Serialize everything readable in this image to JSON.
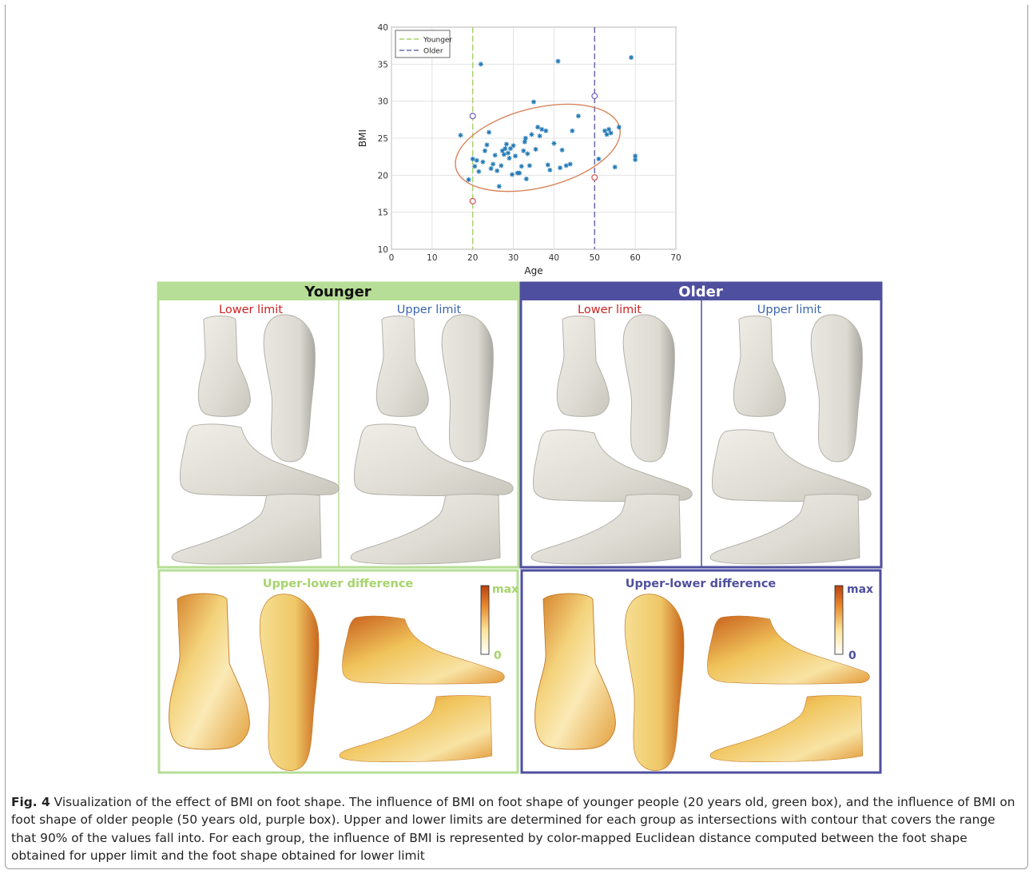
{
  "chart_data": {
    "type": "scatter",
    "xlabel": "Age",
    "ylabel": "BMI",
    "xlim": [
      0,
      70
    ],
    "ylim": [
      10,
      40
    ],
    "xticks": [
      0,
      10,
      20,
      30,
      40,
      50,
      60,
      70
    ],
    "yticks": [
      10,
      15,
      20,
      25,
      30,
      35,
      40
    ],
    "grid": true,
    "legend_position": "top-left",
    "legend": [
      {
        "label": "Younger",
        "color": "#a6d46a"
      },
      {
        "label": "Older",
        "color": "#6a6aa8"
      }
    ],
    "reference_lines": [
      {
        "series": "Younger",
        "x": 20,
        "color": "#a6d46a"
      },
      {
        "series": "Older",
        "x": 50,
        "color": "#6a6aa8"
      }
    ],
    "ellipse": {
      "color": "#d8845a",
      "center": [
        36,
        23.7
      ],
      "x_range": [
        17.5,
        59
      ],
      "y_range": [
        15.4,
        32.7
      ]
    },
    "limit_points": [
      {
        "x": 20,
        "y": 28,
        "color": "#7b68c0"
      },
      {
        "x": 20,
        "y": 16.5,
        "color": "#d65a5a"
      },
      {
        "x": 50,
        "y": 30.7,
        "color": "#7b68c0"
      },
      {
        "x": 50,
        "y": 19.7,
        "color": "#d65a5a"
      }
    ],
    "marker_color": "#1f77b4",
    "points": [
      [
        17,
        25.4
      ],
      [
        19,
        19.4
      ],
      [
        20,
        22.2
      ],
      [
        20.5,
        21.2
      ],
      [
        21,
        22
      ],
      [
        21.5,
        20.5
      ],
      [
        22,
        35
      ],
      [
        22.5,
        21.8
      ],
      [
        23,
        23.3
      ],
      [
        23.5,
        24.1
      ],
      [
        24,
        25.8
      ],
      [
        24.5,
        20.9
      ],
      [
        25,
        21.5
      ],
      [
        25.5,
        22.7
      ],
      [
        26,
        20.6
      ],
      [
        26.5,
        18.5
      ],
      [
        27,
        21.3
      ],
      [
        27.3,
        23.3
      ],
      [
        27.7,
        22.8
      ],
      [
        28,
        23.6
      ],
      [
        28.3,
        24.2
      ],
      [
        28.7,
        23
      ],
      [
        29,
        22.3
      ],
      [
        29.3,
        23.6
      ],
      [
        29.7,
        20.1
      ],
      [
        30,
        24
      ],
      [
        30.5,
        22.6
      ],
      [
        31,
        20.3
      ],
      [
        31.5,
        20.3
      ],
      [
        32,
        21.2
      ],
      [
        32.5,
        23.3
      ],
      [
        32.8,
        24.5
      ],
      [
        33,
        25
      ],
      [
        33.2,
        19.5
      ],
      [
        33.5,
        22.9
      ],
      [
        34,
        21.3
      ],
      [
        34.5,
        25.5
      ],
      [
        35,
        29.9
      ],
      [
        35.5,
        23.5
      ],
      [
        36,
        26.5
      ],
      [
        36.5,
        25.3
      ],
      [
        37,
        26.2
      ],
      [
        38,
        26
      ],
      [
        38.5,
        21.4
      ],
      [
        39,
        20.7
      ],
      [
        40,
        24.3
      ],
      [
        41,
        35.4
      ],
      [
        41.5,
        21
      ],
      [
        42,
        23.4
      ],
      [
        43,
        21.3
      ],
      [
        44,
        21.5
      ],
      [
        44.5,
        26
      ],
      [
        46,
        28
      ],
      [
        51,
        22.2
      ],
      [
        52.5,
        26
      ],
      [
        53,
        25.5
      ],
      [
        53.5,
        26.2
      ],
      [
        54,
        25.7
      ],
      [
        55,
        21.1
      ],
      [
        56,
        26.5
      ],
      [
        59,
        35.9
      ],
      [
        60,
        22.6
      ],
      [
        60,
        22.1
      ]
    ]
  },
  "panels": {
    "younger_title": "Younger",
    "older_title": "Older",
    "lower_limit": "Lower limit",
    "upper_limit": "Upper limit",
    "difference_title": "Upper-lower difference",
    "scale_max": "max",
    "scale_min": "0",
    "younger_color": "#b6de96",
    "older_color": "#4f4f9f",
    "lower_color": "#cc2222",
    "upper_color": "#3a64b0"
  },
  "caption": {
    "label": "Fig. 4",
    "text": " Visualization of the effect of BMI on foot shape. The influence of BMI on foot shape of younger people (20 years old, green box), and the influence of BMI on foot shape of older people (50 years old, purple box). Upper and lower limits are determined for each group as intersections with contour that covers the range that 90% of the values fall into. For each group, the influence of BMI is represented by color-mapped Euclidean distance computed between the foot shape obtained for upper limit and the foot shape obtained for lower limit"
  }
}
